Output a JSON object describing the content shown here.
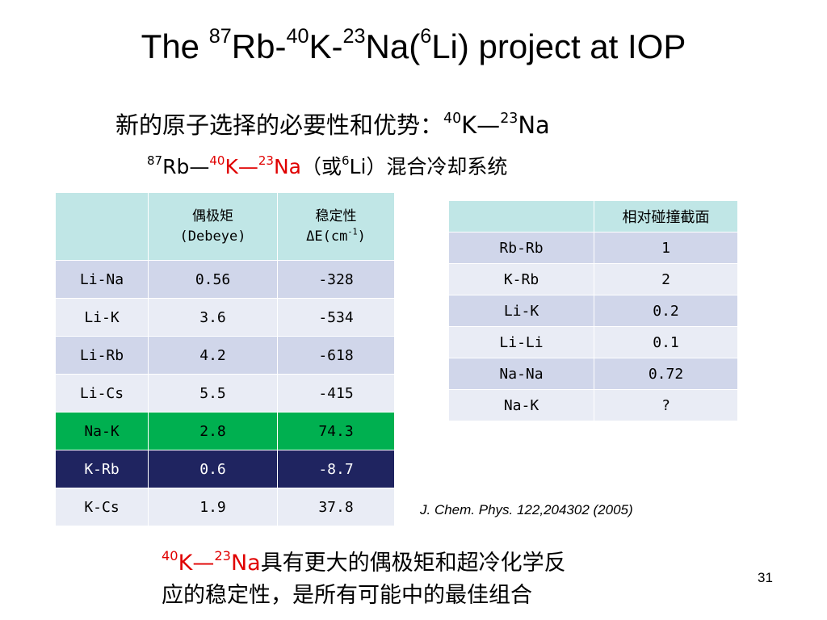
{
  "title": {
    "the": "The ",
    "rb_mass": "87",
    "rb": "Rb-",
    "k_mass": "40",
    "k": "K-",
    "na_mass": "23",
    "na": "Na(",
    "li_mass": "6",
    "rest": "Li) project at IOP"
  },
  "subtitle1": {
    "text": "新的原子选择的必要性和优势：",
    "k_mass": "40",
    "k": "K—",
    "na_mass": "23",
    "na": "Na"
  },
  "subtitle2": {
    "rb_mass": "87",
    "rb": "Rb—",
    "k_mass": "40",
    "k": "K—",
    "na_mass": "23",
    "na": "Na",
    "middle": "（或",
    "li_mass": "6",
    "rest": "Li）混合冷却系统"
  },
  "table1": {
    "headers": [
      "",
      "偶极矩",
      "(Debeye)",
      "稳定性",
      "ΔE(cm",
      "-1",
      ")"
    ],
    "rows": [
      [
        "Li-Na",
        "0.56",
        "-328"
      ],
      [
        "Li-K",
        "3.6",
        "-534"
      ],
      [
        "Li-Rb",
        "4.2",
        "-618"
      ],
      [
        "Li-Cs",
        "5.5",
        "-415"
      ],
      [
        "Na-K",
        "2.8",
        "74.3"
      ],
      [
        "K-Rb",
        "0.6",
        "-8.7"
      ],
      [
        "K-Cs",
        "1.9",
        "37.8"
      ]
    ]
  },
  "table2": {
    "headers": [
      "",
      "相对碰撞截面"
    ],
    "rows": [
      [
        "Rb-Rb",
        "1"
      ],
      [
        "K-Rb",
        "2"
      ],
      [
        "Li-K",
        "0.2"
      ],
      [
        "Li-Li",
        "0.1"
      ],
      [
        "Na-Na",
        "0.72"
      ],
      [
        "Na-K",
        "?"
      ]
    ]
  },
  "reference": "J. Chem. Phys. 122,204302 (2005)",
  "conclusion": {
    "k_mass": "40",
    "k": "K—",
    "na_mass": "23",
    "na": "Na",
    "line1": "具有更大的偶极矩和超冷化学反",
    "line2": "应的稳定性，是所有可能中的最佳组合"
  },
  "page_number": "31",
  "colors": {
    "header_bg": "#c0e6e6",
    "row_dark": "#d0d6ea",
    "row_light": "#e9ecf5",
    "highlight_green": "#00b050",
    "highlight_navy": "#1f2460",
    "accent_red": "#e00000"
  }
}
